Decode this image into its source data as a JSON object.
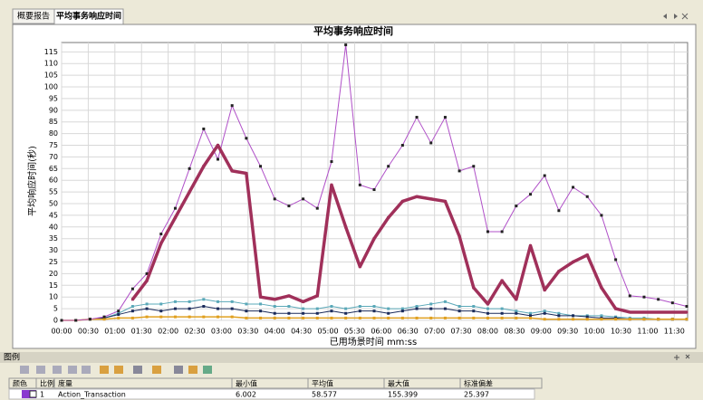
{
  "tabs": [
    "概要报告",
    "平均事务响应时间"
  ],
  "chart_data": {
    "type": "line",
    "title": "平均事务响应时间",
    "x_label": "已用场景时间 mm:ss",
    "y_label": "平均响应时间(秒)",
    "x": [
      0,
      16,
      32,
      48,
      64,
      80,
      96,
      112,
      128,
      144,
      160,
      176,
      192,
      208,
      224,
      240,
      256,
      272,
      288,
      304,
      320,
      336,
      352,
      368,
      384,
      400,
      416,
      432,
      448,
      464,
      480,
      496,
      512,
      528,
      544,
      560,
      576,
      592,
      608,
      624,
      640,
      656,
      672,
      688,
      704
    ],
    "series": [
      {
        "color": "#5aa8b8",
        "width": 1,
        "values": [
          0,
          0,
          0.5,
          1,
          3,
          6,
          7,
          7,
          8,
          8,
          9,
          8,
          8,
          7,
          7,
          6,
          6,
          5,
          5,
          6,
          5,
          6,
          6,
          5,
          5,
          6,
          7,
          8,
          6,
          6,
          5,
          5,
          4,
          3,
          4,
          3,
          2,
          2,
          2,
          1.5,
          1,
          1,
          0.5,
          0.5,
          0.5
        ]
      },
      {
        "color": "#1a2a5a",
        "width": 1,
        "values": [
          0,
          0,
          0.5,
          1,
          2.5,
          4,
          5,
          4,
          5,
          5,
          6,
          5,
          5,
          4,
          4,
          3,
          3,
          3,
          3,
          4,
          3,
          4,
          4,
          3,
          4,
          5,
          5,
          5,
          4,
          4,
          3,
          3,
          3,
          2,
          3,
          2,
          2,
          1.5,
          1,
          1,
          0.5,
          0.5,
          0.5,
          0.5,
          0.5
        ]
      },
      {
        "color": "#e0a020",
        "width": 1.5,
        "values": [
          0,
          0,
          0.5,
          0.5,
          1,
          1,
          1.5,
          1.5,
          1.5,
          1.5,
          1.5,
          1.5,
          1.5,
          1,
          1,
          1,
          1,
          1,
          1,
          1,
          1,
          1,
          1,
          1,
          1,
          1,
          1,
          1,
          1,
          1,
          1,
          1,
          1,
          1,
          0.5,
          0.5,
          0.5,
          0.5,
          0.5,
          0.5,
          0.5,
          0.5,
          0.5,
          0.5,
          0.5
        ]
      },
      {
        "color": "#b050c8",
        "width": 1,
        "values": [
          0,
          0,
          0.5,
          1.5,
          4,
          13.5,
          20,
          37,
          48,
          65,
          82,
          69,
          92,
          78,
          66,
          52,
          49,
          52,
          48,
          68,
          118,
          58,
          56,
          66,
          75,
          87,
          76,
          87,
          64,
          66,
          38,
          38,
          49,
          54,
          62,
          47,
          57,
          53,
          45,
          26,
          10.5,
          10,
          9,
          7.5,
          6
        ]
      },
      {
        "color": "#a0305a",
        "width": 3.5,
        "values": [
          null,
          null,
          null,
          null,
          null,
          9,
          17,
          33,
          44,
          55,
          66,
          75,
          64,
          63,
          10,
          9,
          10.5,
          8,
          10.5,
          58,
          40,
          23,
          35,
          44,
          51,
          53,
          52,
          51,
          36,
          14,
          7,
          17,
          9,
          32,
          13,
          21,
          25,
          28,
          14,
          5,
          3.5,
          3.5,
          3.5,
          3.5,
          3.5
        ]
      }
    ],
    "xlim": [
      0,
      705
    ],
    "ylim": [
      0,
      119
    ],
    "yticks": [
      0,
      5,
      10,
      15,
      20,
      25,
      30,
      35,
      40,
      45,
      50,
      55,
      60,
      65,
      70,
      75,
      80,
      85,
      90,
      95,
      100,
      105,
      110,
      115
    ],
    "xticks": [
      {
        "value": 0,
        "label": "00:00"
      },
      {
        "value": 30,
        "label": "00:30"
      },
      {
        "value": 60,
        "label": "01:00"
      },
      {
        "value": 90,
        "label": "01:30"
      },
      {
        "value": 120,
        "label": "02:00"
      },
      {
        "value": 150,
        "label": "02:30"
      },
      {
        "value": 180,
        "label": "03:00"
      },
      {
        "value": 210,
        "label": "03:30"
      },
      {
        "value": 240,
        "label": "04:00"
      },
      {
        "value": 270,
        "label": "04:30"
      },
      {
        "value": 300,
        "label": "05:00"
      },
      {
        "value": 330,
        "label": "05:30"
      },
      {
        "value": 360,
        "label": "06:00"
      },
      {
        "value": 390,
        "label": "06:30"
      },
      {
        "value": 420,
        "label": "07:00"
      },
      {
        "value": 450,
        "label": "07:30"
      },
      {
        "value": 480,
        "label": "08:00"
      },
      {
        "value": 510,
        "label": "08:30"
      },
      {
        "value": 540,
        "label": "09:00"
      },
      {
        "value": 570,
        "label": "09:30"
      },
      {
        "value": 600,
        "label": "10:00"
      },
      {
        "value": 630,
        "label": "10:30"
      },
      {
        "value": 660,
        "label": "11:00"
      },
      {
        "value": 690,
        "label": "11:30"
      }
    ],
    "grid": true
  },
  "legend_panel": {
    "title": "图例",
    "headers": [
      "颜色",
      "比例",
      "度量",
      "最小值",
      "平均值",
      "最大值",
      "标准偏差"
    ],
    "rows": [
      [
        "1",
        "Action_Transaction",
        "6.002",
        "58.577",
        "155.399",
        "25.397"
      ]
    ]
  }
}
